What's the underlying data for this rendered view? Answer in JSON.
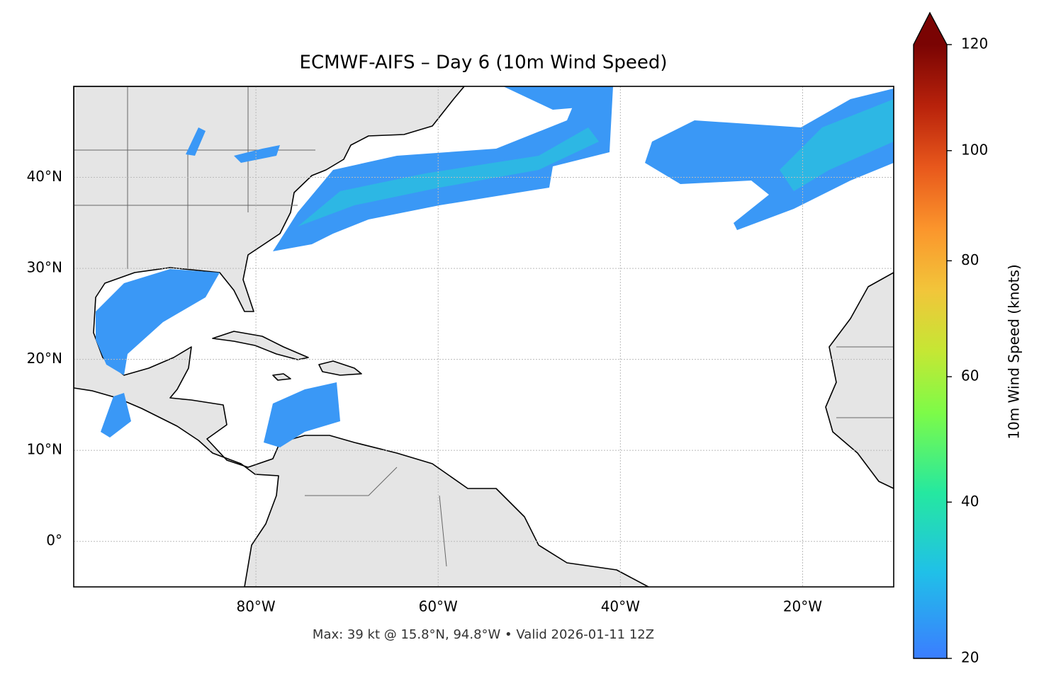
{
  "title": "ECMWF-AIFS – Day 6 (10m Wind Speed)",
  "footer": "Max: 39 kt @ 15.8°N, 94.8°W • Valid 2026-01-11 12Z",
  "map": {
    "xlim": [
      -100,
      -10
    ],
    "ylim": [
      -5,
      50
    ],
    "xticks": [
      {
        "value": -80,
        "label": "80°W"
      },
      {
        "value": -60,
        "label": "60°W"
      },
      {
        "value": -40,
        "label": "40°W"
      },
      {
        "value": -20,
        "label": "20°W"
      }
    ],
    "yticks": [
      {
        "value": 0,
        "label": "0°"
      },
      {
        "value": 10,
        "label": "10°N"
      },
      {
        "value": 20,
        "label": "20°N"
      },
      {
        "value": 30,
        "label": "30°N"
      },
      {
        "value": 40,
        "label": "40°N"
      }
    ],
    "grid": true
  },
  "colorbar": {
    "label": "10m Wind Speed (knots)",
    "lim": [
      20,
      120
    ],
    "ticks": [
      20,
      40,
      60,
      80,
      100,
      120
    ]
  }
}
